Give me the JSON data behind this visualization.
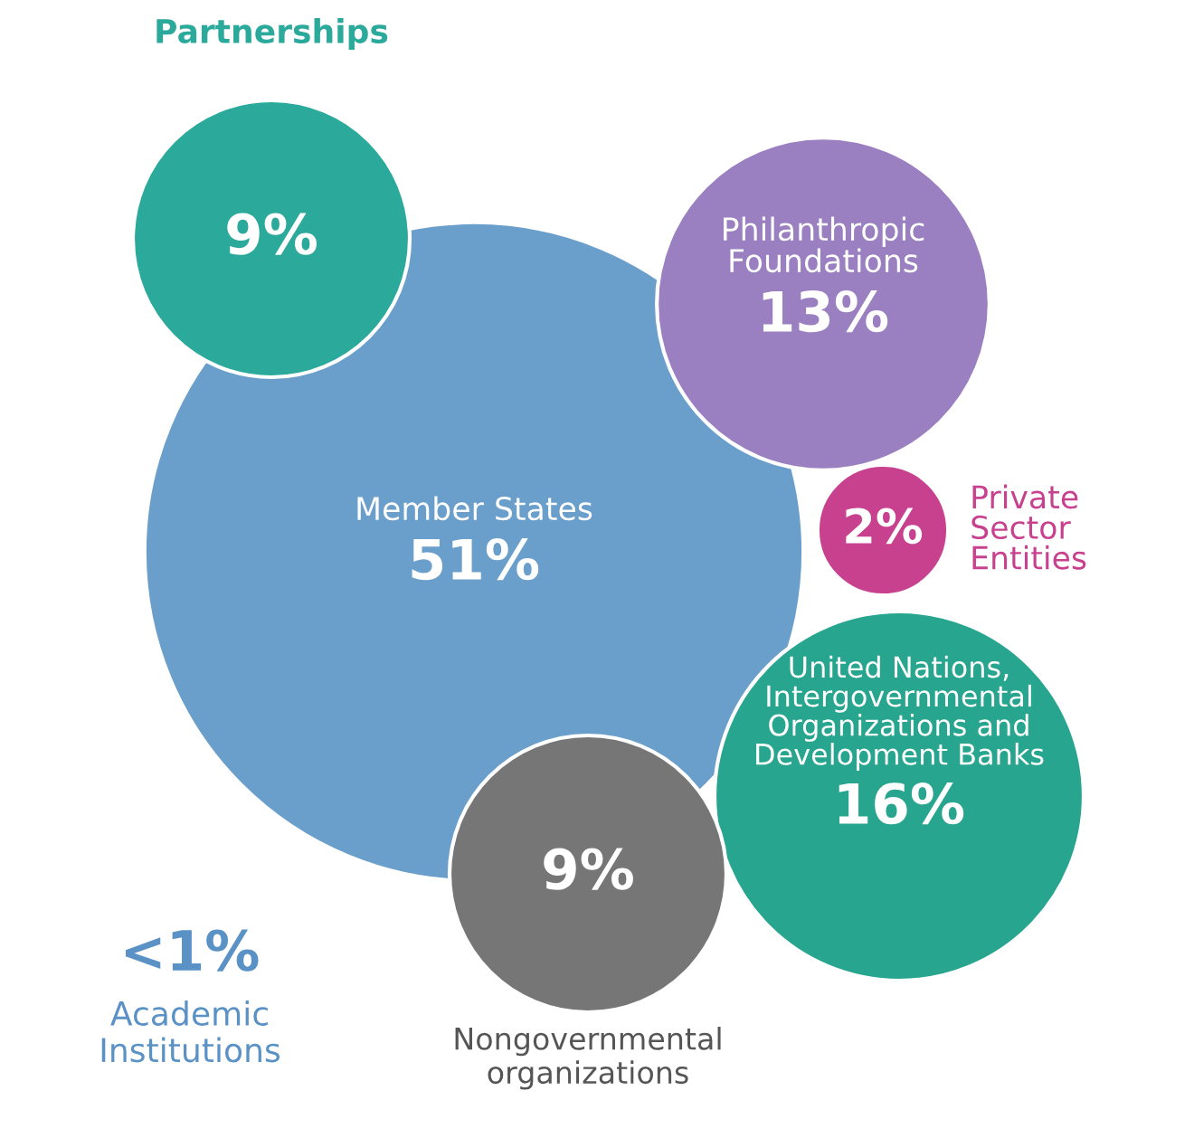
{
  "chart_data": {
    "type": "other",
    "categories": [
      "Partnerships",
      "Philanthropic\nFoundations",
      "Private\nSector\nEntities",
      "Member States",
      "United Nations,\nIntergovernmental\nOrganizations and\nDevelopment Banks",
      "Nongovernmental\norganizations",
      "Academic\nInstitutions"
    ],
    "values": [
      9,
      13,
      2,
      51,
      16,
      9,
      null
    ],
    "value_labels": [
      "9%",
      "13%",
      "2%",
      "51%",
      "16%",
      "9%",
      "<1%"
    ],
    "colors": [
      "#2ba99b",
      "#9a7fc1",
      "#c8418f",
      "#6a9ecb",
      "#27a58f",
      "#767676",
      "#5b92c6"
    ]
  }
}
